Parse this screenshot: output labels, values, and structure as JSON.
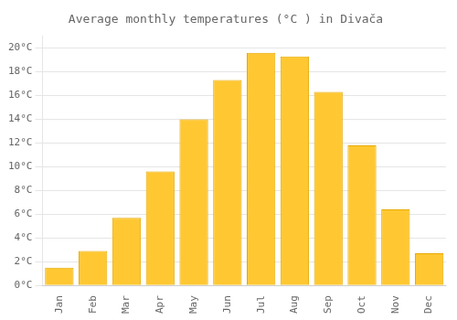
{
  "chart_data": {
    "type": "bar",
    "title": "Average monthly temperatures (°C ) in Divača",
    "categories": [
      "Jan",
      "Feb",
      "Mar",
      "Apr",
      "May",
      "Jun",
      "Jul",
      "Aug",
      "Sep",
      "Oct",
      "Nov",
      "Dec"
    ],
    "values": [
      1.5,
      2.9,
      5.7,
      9.6,
      14.0,
      17.3,
      19.6,
      19.3,
      16.3,
      11.8,
      6.4,
      2.7
    ],
    "color": "#FFC832",
    "ylim": [
      0,
      21
    ],
    "yticks": [
      {
        "value": 0,
        "label": "0°C"
      },
      {
        "value": 2,
        "label": "2°C"
      },
      {
        "value": 4,
        "label": "4°C"
      },
      {
        "value": 6,
        "label": "6°C"
      },
      {
        "value": 8,
        "label": "8°C"
      },
      {
        "value": 10,
        "label": "10°C"
      },
      {
        "value": 12,
        "label": "12°C"
      },
      {
        "value": 14,
        "label": "14°C"
      },
      {
        "value": 16,
        "label": "16°C"
      },
      {
        "value": 18,
        "label": "18°C"
      },
      {
        "value": 20,
        "label": "20°C"
      }
    ],
    "grid": true
  }
}
